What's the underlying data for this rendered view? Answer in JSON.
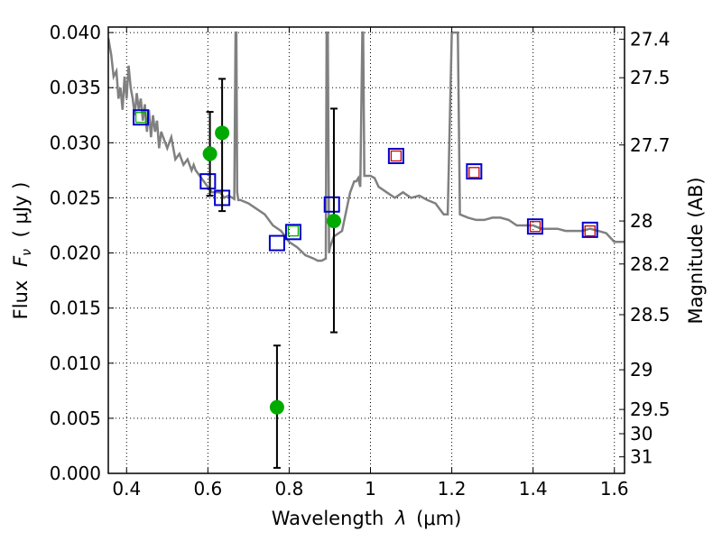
{
  "chart_data": {
    "type": "scatter",
    "xlabel_text": "Wavelength",
    "xlabel_symbol": "λ",
    "xlabel_unit": "(μm)",
    "ylabel_text": "Flux",
    "ylabel_symbol": "F",
    "ylabel_subscript": "ν",
    "ylabel_unit": "( μJy )",
    "y2label": "Magnitude (AB)",
    "xlim": [
      0.355,
      1.625
    ],
    "ylim": [
      0.0,
      0.0405
    ],
    "grid": true,
    "x_ticks": [
      0.4,
      0.6,
      0.8,
      1.0,
      1.2,
      1.4,
      1.6
    ],
    "x_tick_labels": [
      "0.4",
      "0.6",
      "0.8",
      "1",
      "1.2",
      "1.4",
      "1.6"
    ],
    "y_ticks": [
      0.0,
      0.005,
      0.01,
      0.015,
      0.02,
      0.025,
      0.03,
      0.035,
      0.04
    ],
    "y_tick_labels": [
      "0.000",
      "0.005",
      "0.010",
      "0.015",
      "0.020",
      "0.025",
      "0.030",
      "0.035",
      "0.040"
    ],
    "y2_ticks": [
      {
        "flux": 0.0394,
        "label": "27.4"
      },
      {
        "flux": 0.0359,
        "label": "27.5"
      },
      {
        "flux": 0.0298,
        "label": "27.7"
      },
      {
        "flux": 0.0229,
        "label": "28"
      },
      {
        "flux": 0.019,
        "label": "28.2"
      },
      {
        "flux": 0.0144,
        "label": "28.5"
      },
      {
        "flux": 0.0094,
        "label": "29"
      },
      {
        "flux": 0.0058,
        "label": "29.5"
      },
      {
        "flux": 0.0036,
        "label": "30"
      },
      {
        "flux": 0.0015,
        "label": "31"
      }
    ],
    "series": [
      {
        "name": "model spectrum",
        "type": "line",
        "color": "#808080",
        "x": [
          0.355,
          0.362,
          0.368,
          0.375,
          0.38,
          0.385,
          0.39,
          0.395,
          0.4,
          0.405,
          0.41,
          0.415,
          0.42,
          0.425,
          0.43,
          0.435,
          0.44,
          0.445,
          0.45,
          0.455,
          0.46,
          0.465,
          0.47,
          0.475,
          0.48,
          0.485,
          0.49,
          0.495,
          0.5,
          0.51,
          0.52,
          0.53,
          0.54,
          0.55,
          0.56,
          0.565,
          0.57,
          0.58,
          0.59,
          0.6,
          0.61,
          0.62,
          0.63,
          0.64,
          0.65,
          0.66,
          0.665,
          0.668,
          0.67,
          0.672,
          0.675,
          0.68,
          0.7,
          0.72,
          0.74,
          0.76,
          0.78,
          0.8,
          0.82,
          0.84,
          0.86,
          0.87,
          0.88,
          0.89,
          0.892,
          0.895,
          0.898,
          0.9,
          0.905,
          0.91,
          0.93,
          0.95,
          0.96,
          0.965,
          0.97,
          0.975,
          0.98,
          0.982,
          0.985,
          0.99,
          1.0,
          1.01,
          1.02,
          1.04,
          1.06,
          1.08,
          1.1,
          1.12,
          1.14,
          1.16,
          1.17,
          1.18,
          1.19,
          1.2,
          1.21,
          1.215,
          1.22,
          1.24,
          1.26,
          1.28,
          1.3,
          1.32,
          1.34,
          1.36,
          1.38,
          1.4,
          1.42,
          1.44,
          1.46,
          1.48,
          1.5,
          1.52,
          1.54,
          1.56,
          1.58,
          1.6,
          1.625
        ],
        "y": [
          0.0395,
          0.038,
          0.036,
          0.0365,
          0.034,
          0.035,
          0.033,
          0.036,
          0.034,
          0.037,
          0.035,
          0.034,
          0.0325,
          0.0345,
          0.033,
          0.034,
          0.032,
          0.0335,
          0.031,
          0.033,
          0.0305,
          0.0325,
          0.031,
          0.032,
          0.0295,
          0.031,
          0.0305,
          0.03,
          0.0295,
          0.0305,
          0.0285,
          0.029,
          0.028,
          0.0285,
          0.0275,
          0.028,
          0.0275,
          0.027,
          0.0265,
          0.026,
          0.0255,
          0.0255,
          0.0255,
          0.025,
          0.0252,
          0.025,
          0.0249,
          0.04,
          0.04,
          0.0255,
          0.0248,
          0.0248,
          0.0245,
          0.024,
          0.0235,
          0.0225,
          0.022,
          0.021,
          0.0205,
          0.0198,
          0.0195,
          0.0193,
          0.0193,
          0.0195,
          0.04,
          0.04,
          0.02,
          0.0205,
          0.021,
          0.0215,
          0.022,
          0.0255,
          0.0265,
          0.0265,
          0.0268,
          0.026,
          0.04,
          0.04,
          0.027,
          0.027,
          0.027,
          0.0268,
          0.026,
          0.0255,
          0.025,
          0.0255,
          0.025,
          0.0252,
          0.0248,
          0.0245,
          0.024,
          0.0235,
          0.0235,
          0.04,
          0.04,
          0.04,
          0.0235,
          0.0232,
          0.023,
          0.023,
          0.0232,
          0.0232,
          0.023,
          0.0225,
          0.0225,
          0.0225,
          0.0222,
          0.0222,
          0.0222,
          0.022,
          0.022,
          0.022,
          0.0222,
          0.022,
          0.0218,
          0.021,
          0.021
        ]
      },
      {
        "name": "blue squares",
        "type": "marker",
        "marker": "square-open",
        "color": "#0000cc",
        "x": [
          0.435,
          0.6,
          0.635,
          0.77,
          0.81,
          0.905,
          1.063,
          1.255,
          1.405,
          1.54
        ],
        "y": [
          0.0323,
          0.0265,
          0.025,
          0.0209,
          0.0219,
          0.0244,
          0.0288,
          0.0274,
          0.0224,
          0.0221
        ]
      },
      {
        "name": "green squares",
        "type": "marker",
        "marker": "square-open",
        "color": "#00aa00",
        "x": [
          0.435,
          0.81
        ],
        "y": [
          0.0323,
          0.022
        ]
      },
      {
        "name": "red squares",
        "type": "marker",
        "marker": "square-open",
        "color": "#cc0000",
        "x": [
          1.063,
          1.255,
          1.405,
          1.54
        ],
        "y": [
          0.0288,
          0.0273,
          0.0224,
          0.022
        ]
      },
      {
        "name": "green circles",
        "type": "errorbar",
        "marker": "circle",
        "color": "#00aa00",
        "x": [
          0.605,
          0.635,
          0.77,
          0.91
        ],
        "y": [
          0.029,
          0.0309,
          0.006,
          0.0229
        ],
        "yerr_low": [
          0.0038,
          0.0071,
          0.0055,
          0.0101
        ],
        "yerr_high": [
          0.0038,
          0.0049,
          0.0056,
          0.0102
        ]
      }
    ]
  }
}
